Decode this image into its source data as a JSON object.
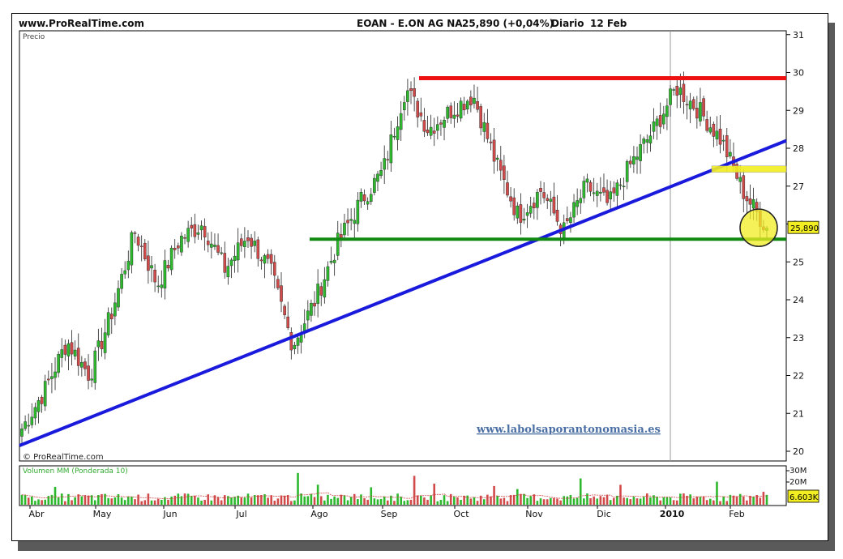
{
  "header": {
    "site": "www.ProRealTime.com",
    "instrument": "EOAN - E.ON AG NA",
    "quote": "25,890 (+0,04%)",
    "period": "Diario",
    "date": "12 Feb"
  },
  "price_panel": {
    "label": "Precio",
    "watermark": "© ProRealTime.com",
    "website": "www.labolsaporantonomasia.es",
    "last_price_tag": "25,890"
  },
  "volume_panel": {
    "label": "Volumen MM (Ponderada 10)",
    "last_value_tag": "6.603K"
  },
  "colors": {
    "up_candle": "#2db82d",
    "down_candle": "#d14b4b",
    "trendline": "#1a1adc",
    "resistance": "#ee1111",
    "support": "#118811",
    "highlight": "#f2ee22"
  },
  "chart_data": [
    {
      "type": "candlestick",
      "y_ticks": [
        "20",
        "21",
        "22",
        "23",
        "24",
        "25",
        "26",
        "27",
        "28",
        "29",
        "30",
        "31"
      ],
      "x_ticks": [
        "Abr",
        "May",
        "Jun",
        "Jul",
        "Ago",
        "Sep",
        "Oct",
        "Nov",
        "Dic",
        "2010",
        "Feb"
      ],
      "ylim": [
        20,
        31
      ],
      "series_anchors": [
        {
          "x": "Abr",
          "close": 20.6
        },
        {
          "x": "Abr",
          "close": 21.6
        },
        {
          "x": "Abr",
          "close": 22.9
        },
        {
          "x": "Abr",
          "close": 22.0
        },
        {
          "x": "Abr",
          "close": 23.7
        },
        {
          "x": "May",
          "close": 25.8
        },
        {
          "x": "May",
          "close": 24.4
        },
        {
          "x": "May",
          "close": 25.6
        },
        {
          "x": "Jun",
          "close": 26.0
        },
        {
          "x": "Jun",
          "close": 24.8
        },
        {
          "x": "Jun",
          "close": 25.7
        },
        {
          "x": "Jul",
          "close": 24.8
        },
        {
          "x": "Jul",
          "close": 22.8
        },
        {
          "x": "Jul",
          "close": 24.0
        },
        {
          "x": "Ago",
          "close": 25.5
        },
        {
          "x": "Ago",
          "close": 26.6
        },
        {
          "x": "Ago",
          "close": 27.4
        },
        {
          "x": "Sep",
          "close": 29.6
        },
        {
          "x": "Sep",
          "close": 28.5
        },
        {
          "x": "Sep",
          "close": 29.0
        },
        {
          "x": "Oct",
          "close": 29.4
        },
        {
          "x": "Oct",
          "close": 27.6
        },
        {
          "x": "Oct",
          "close": 26.2
        },
        {
          "x": "Nov",
          "close": 26.9
        },
        {
          "x": "Nov",
          "close": 25.8
        },
        {
          "x": "Nov",
          "close": 27.0
        },
        {
          "x": "Dic",
          "close": 26.5
        },
        {
          "x": "Dic",
          "close": 27.6
        },
        {
          "x": "Dic",
          "close": 28.5
        },
        {
          "x": "2010",
          "close": 29.6
        },
        {
          "x": "2010",
          "close": 29.0
        },
        {
          "x": "2010",
          "close": 28.2
        },
        {
          "x": "Feb",
          "close": 26.8
        },
        {
          "x": "Feb",
          "close": 25.9
        }
      ],
      "annotations": {
        "resistance_level": 29.85,
        "support_level": 25.6,
        "minor_resistance_level": 27.45,
        "trendline": [
          {
            "x": "Abr",
            "y": 20.15
          },
          {
            "x": "Feb",
            "y": 28.2
          }
        ],
        "circle_center": 25.9
      }
    },
    {
      "type": "bar",
      "name": "Volumen MM (Ponderada 10)",
      "y_ticks": [
        "30M",
        "20M"
      ],
      "ylim": [
        0,
        30
      ],
      "last_value": "6.603K"
    }
  ]
}
